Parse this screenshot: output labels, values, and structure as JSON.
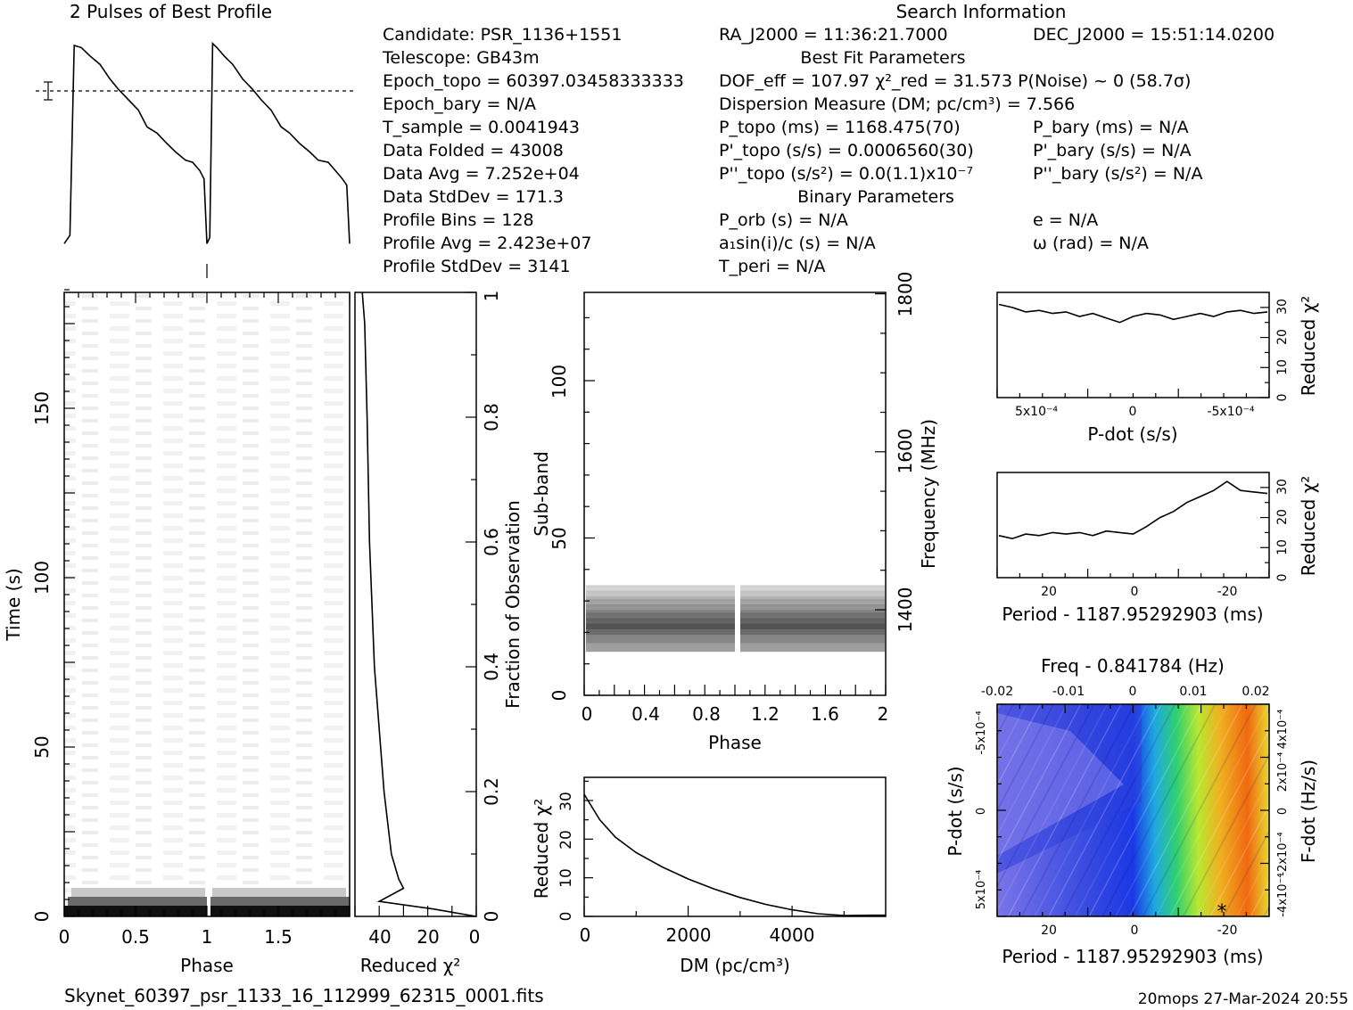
{
  "header": {
    "profile_title": "2 Pulses of Best Profile",
    "search_title": "Search Information",
    "best_fit_title": "Best Fit Parameters",
    "binary_title": "Binary Parameters",
    "left_rows": [
      "Candidate:  PSR_1136+1551",
      "Telescope:  GB43m",
      "Epoch_topo = 60397.03458333333",
      "Epoch_bary = N/A",
      "T_sample      =  0.0041943",
      "Data Folded   =  43008",
      "Data Avg      =  7.252e+04",
      "Data StdDev   =  171.3",
      "Profile Bins  =  128",
      "Profile Avg   =  2.423e+07",
      "Profile StdDev =  3141"
    ],
    "ra": "RA_J2000 = 11:36:21.7000",
    "dec": "DEC_J2000 = 15:51:14.0200",
    "dof": "DOF_eff = 107.97  χ²_red = 31.573  P(Noise) ~ 0    (58.7σ)",
    "dm_line": "Dispersion Measure (DM; pc/cm³) = 7.566",
    "p_topo": "P_topo (ms) =  1168.475(70)",
    "pd_topo": "P'_topo (s/s) =  0.0006560(30)",
    "pdd_topo": "P''_topo (s/s²) = 0.0(1.1)x10⁻⁷",
    "p_bary": "P_bary (ms) = N/A",
    "pd_bary": "P'_bary (s/s) = N/A",
    "pdd_bary": "P''_bary (s/s²) = N/A",
    "p_orb": "P_orb (s) = N/A",
    "a1": "a₁sin(i)/c (s) = N/A",
    "t_peri": "T_peri = N/A",
    "ecc": "e = N/A",
    "omega": "ω (rad) = N/A"
  },
  "footer": {
    "filename": "Skynet_60397_psr_1133_16_112999_62315_0001.fits",
    "stamp": "20mops 27-Mar-2024 20:55"
  },
  "chart_data": [
    {
      "type": "line",
      "panel": "profile",
      "title": "2 Pulses of Best Profile",
      "x": [
        0.0,
        0.04,
        0.07,
        0.12,
        0.18,
        0.25,
        0.32,
        0.38,
        0.45,
        0.52,
        0.58,
        0.65,
        0.72,
        0.78,
        0.85,
        0.9,
        0.95,
        0.98,
        1.0,
        1.02,
        1.04,
        1.07,
        1.12,
        1.18,
        1.25,
        1.32,
        1.38,
        1.45,
        1.52,
        1.58,
        1.65,
        1.72,
        1.78,
        1.85,
        1.9,
        1.95,
        1.98,
        2.0
      ],
      "y": [
        0.02,
        0.06,
        0.97,
        0.96,
        0.92,
        0.88,
        0.81,
        0.76,
        0.71,
        0.66,
        0.58,
        0.55,
        0.5,
        0.46,
        0.42,
        0.41,
        0.37,
        0.33,
        0.02,
        0.05,
        0.98,
        0.96,
        0.92,
        0.88,
        0.81,
        0.76,
        0.71,
        0.66,
        0.58,
        0.55,
        0.5,
        0.46,
        0.42,
        0.41,
        0.37,
        0.33,
        0.3,
        0.02
      ]
    },
    {
      "type": "heatmap",
      "panel": "time-phase",
      "xlabel": "Phase",
      "ylabel": "Time (s)",
      "x_ticks": [
        "0",
        "0.5",
        "1",
        "1.5"
      ],
      "y_ticks": [
        "0",
        "50",
        "100",
        "150"
      ],
      "xlim": [
        0,
        2
      ],
      "ylim": [
        0,
        185
      ]
    },
    {
      "type": "line",
      "panel": "reduced-chi2-vs-time",
      "xlabel": "Reduced χ²",
      "ylabel": "Fraction of Observation",
      "x_ticks": [
        "40",
        "20",
        "0"
      ],
      "y_ticks": [
        "0",
        "0.2",
        "0.4",
        "0.6",
        "0.8",
        "1"
      ],
      "xlim": [
        50,
        0
      ],
      "ylim": [
        0,
        1
      ],
      "x": [
        0,
        18,
        40,
        30,
        32,
        35,
        38,
        40,
        42,
        44,
        45,
        46,
        47
      ],
      "y": [
        0.0,
        0.012,
        0.024,
        0.045,
        0.06,
        0.1,
        0.2,
        0.3,
        0.4,
        0.6,
        0.8,
        0.95,
        1.0
      ]
    },
    {
      "type": "heatmap",
      "panel": "subband-phase",
      "xlabel": "Phase",
      "ylabel": "Sub-band",
      "y2label": "Frequency (MHz)",
      "x_ticks": [
        "0",
        "0.4",
        "0.8",
        "1.2",
        "1.6",
        "2"
      ],
      "y_ticks": [
        "0",
        "50",
        "100"
      ],
      "y2_ticks": [
        "1400",
        "1600",
        "1800"
      ],
      "xlim": [
        0,
        2
      ],
      "ylim": [
        0,
        128
      ],
      "band_rows": [
        14,
        35
      ]
    },
    {
      "type": "line",
      "panel": "reduced-chi2-vs-dm",
      "xlabel": "DM (pc/cm³)",
      "ylabel": "Reduced χ²",
      "x_ticks": [
        "0",
        "2000",
        "4000"
      ],
      "y_ticks": [
        "0",
        "10",
        "20",
        "30"
      ],
      "xlim": [
        0,
        5800
      ],
      "ylim": [
        0,
        36
      ],
      "x": [
        0,
        300,
        600,
        1000,
        1500,
        2000,
        2500,
        3000,
        3500,
        4000,
        4500,
        5000,
        5500,
        5800
      ],
      "y": [
        31.6,
        25,
        20.5,
        16.5,
        12.8,
        9.7,
        7.1,
        4.9,
        3.1,
        1.7,
        0.7,
        0.2,
        0.3,
        0.3
      ]
    },
    {
      "type": "line",
      "panel": "reduced-chi2-vs-pdot",
      "xlabel": "P-dot (s/s)",
      "ylabel": "Reduced χ²",
      "x_ticks": [
        "5x10⁻⁴",
        "0",
        "-5x10⁻⁴"
      ],
      "y_ticks": [
        "0",
        "10",
        "20",
        "30"
      ],
      "ylim": [
        0,
        35
      ],
      "x": [
        0,
        0.05,
        0.1,
        0.15,
        0.2,
        0.25,
        0.3,
        0.35,
        0.4,
        0.45,
        0.5,
        0.55,
        0.6,
        0.65,
        0.7,
        0.75,
        0.8,
        0.85,
        0.9,
        0.95,
        1.0
      ],
      "y": [
        31,
        30,
        28.5,
        29,
        28,
        28.5,
        27,
        28,
        26.5,
        25,
        27,
        28,
        27.5,
        26,
        27,
        28,
        27,
        28.5,
        29,
        28,
        28.5
      ]
    },
    {
      "type": "line",
      "panel": "reduced-chi2-vs-period",
      "xlabel": "Period - 1187.95292903 (ms)",
      "ylabel": "Reduced χ²",
      "x_ticks": [
        "20",
        "0",
        "-20"
      ],
      "y_ticks": [
        "0",
        "10",
        "20",
        "30"
      ],
      "ylim": [
        0,
        35
      ],
      "x": [
        0,
        0.05,
        0.1,
        0.15,
        0.2,
        0.25,
        0.3,
        0.35,
        0.4,
        0.45,
        0.5,
        0.55,
        0.6,
        0.65,
        0.7,
        0.75,
        0.8,
        0.85,
        0.9,
        0.95,
        1.0
      ],
      "y": [
        14,
        13,
        14.5,
        14,
        15,
        14.5,
        15,
        14,
        15.5,
        15,
        14.5,
        17,
        20,
        22,
        25,
        27,
        29,
        32,
        29,
        28.5,
        28
      ]
    },
    {
      "type": "heatmap",
      "panel": "pdot-period-plane",
      "title": "Freq - 0.841784 (Hz)",
      "xlabel": "Period - 1187.95292903 (ms)",
      "ylabel": "P-dot (s/s)",
      "y2label": "F-dot (Hz/s)",
      "x_ticks": [
        "20",
        "0",
        "-20"
      ],
      "x2_ticks": [
        "-0.02",
        "-0.01",
        "0",
        "0.01",
        "0.02"
      ],
      "y_ticks": [
        "-5x10⁻⁴",
        "0",
        "5x10⁻⁴"
      ],
      "y2_ticks": [
        "4x10⁻⁴",
        "2x10⁻⁴",
        "0",
        "-2x10⁻⁴",
        "-4x10⁻⁴"
      ],
      "colors": [
        "#c8a8ff",
        "#3b55e0",
        "#1a3de8",
        "#1ab8d8",
        "#38d838",
        "#c8e820",
        "#f08810",
        "#e83010"
      ]
    }
  ]
}
